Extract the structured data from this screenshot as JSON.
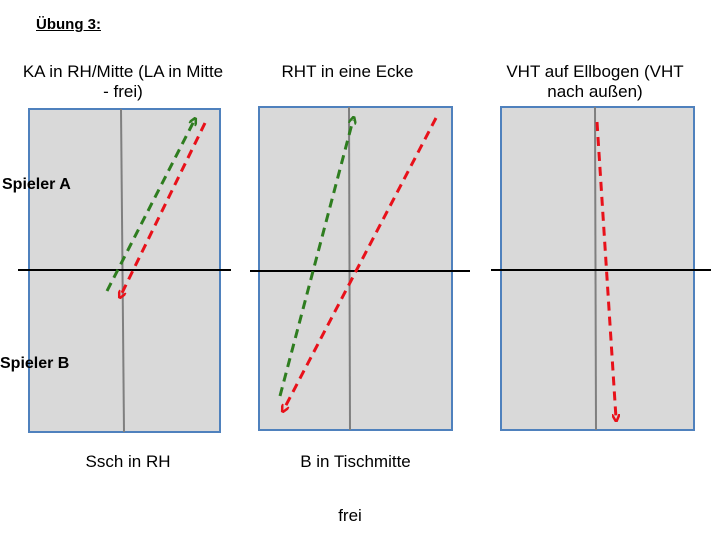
{
  "heading": "Übung 3:",
  "players": {
    "a": "Spieler A",
    "b": "Spieler B"
  },
  "drills": [
    {
      "title": "KA in RH/Mitte (LA in Mitte - frei)",
      "caption": "Ssch in RH"
    },
    {
      "title": "RHT in eine Ecke",
      "caption": "B in Tischmitte"
    },
    {
      "title": "VHT auf Ellbogen (VHT nach außen)",
      "caption": ""
    }
  ],
  "footer": "frei",
  "colors": {
    "table": "#d9d9d9",
    "border": "#4f81bd",
    "green": "#2e7d1f",
    "red": "#e8111a"
  }
}
